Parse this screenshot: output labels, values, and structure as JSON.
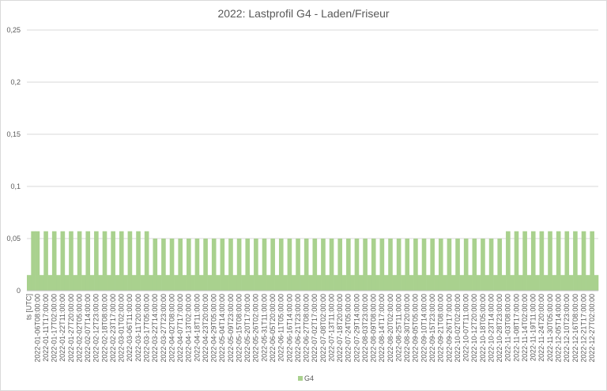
{
  "chart_data": {
    "type": "bar",
    "title": "2022: Lastprofil G4 - Laden/Friseur",
    "categories": [
      "ts [UTC]",
      null,
      "2022-01-06T08:00:00",
      null,
      "2022-01-11T17:00:00",
      null,
      "2022-01-17T02:00:00",
      null,
      "2022-01-22T11:00:00",
      null,
      "2022-01-27T20:00:00",
      null,
      "2022-02-02T05:00:00",
      null,
      "2022-02-07T14:00:00",
      null,
      "2022-02-12T23:00:00",
      null,
      "2022-02-18T08:00:00",
      null,
      "2022-02-23T17:00:00",
      null,
      "2022-03-01T02:00:00",
      null,
      "2022-03-06T11:00:00",
      null,
      "2022-03-11T20:00:00",
      null,
      "2022-03-17T05:00:00",
      null,
      "2022-03-22T14:00:00",
      null,
      "2022-03-27T23:00:00",
      null,
      "2022-04-02T08:00:00",
      null,
      "2022-04-07T17:00:00",
      null,
      "2022-04-13T02:00:00",
      null,
      "2022-04-18T11:00:00",
      null,
      "2022-04-23T20:00:00",
      null,
      "2022-04-29T05:00:00",
      null,
      "2022-05-04T14:00:00",
      null,
      "2022-05-09T23:00:00",
      null,
      "2022-05-15T08:00:00",
      null,
      "2022-05-20T17:00:00",
      null,
      "2022-05-26T02:00:00",
      null,
      "2022-05-31T11:00:00",
      null,
      "2022-06-05T20:00:00",
      null,
      "2022-06-11T05:00:00",
      null,
      "2022-06-16T14:00:00",
      null,
      "2022-06-21T23:00:00",
      null,
      "2022-06-27T08:00:00",
      null,
      "2022-07-02T17:00:00",
      null,
      "2022-07-08T02:00:00",
      null,
      "2022-07-13T11:00:00",
      null,
      "2022-07-18T20:00:00",
      null,
      "2022-07-24T05:00:00",
      null,
      "2022-07-29T14:00:00",
      null,
      "2022-08-03T23:00:00",
      null,
      "2022-08-09T08:00:00",
      null,
      "2022-08-14T17:00:00",
      null,
      "2022-08-20T02:00:00",
      null,
      "2022-08-25T11:00:00",
      null,
      "2022-08-30T20:00:00",
      null,
      "2022-09-05T05:00:00",
      null,
      "2022-09-10T14:00:00",
      null,
      "2022-09-15T23:00:00",
      null,
      "2022-09-21T08:00:00",
      null,
      "2022-09-26T17:00:00",
      null,
      "2022-10-02T02:00:00",
      null,
      "2022-10-07T11:00:00",
      null,
      "2022-10-12T20:00:00",
      null,
      "2022-10-18T05:00:00",
      null,
      "2022-10-23T14:00:00",
      null,
      "2022-10-28T23:00:00",
      null,
      "2022-11-03T08:00:00",
      null,
      "2022-11-08T17:00:00",
      null,
      "2022-11-14T02:00:00",
      null,
      "2022-11-19T11:00:00",
      null,
      "2022-11-24T20:00:00",
      null,
      "2022-11-30T05:00:00",
      null,
      "2022-12-05T14:00:00",
      null,
      "2022-12-10T23:00:00",
      null,
      "2022-12-16T08:00:00",
      null,
      "2022-12-21T17:00:00",
      null,
      "2022-12-27T02:00:00",
      null
    ],
    "series": [
      {
        "name": "G4",
        "color": "#a9d18e",
        "values": [
          0.015,
          0.057,
          0.057,
          0.015,
          0.057,
          0.015,
          0.057,
          0.015,
          0.057,
          0.015,
          0.057,
          0.015,
          0.057,
          0.015,
          0.057,
          0.015,
          0.057,
          0.015,
          0.057,
          0.015,
          0.057,
          0.015,
          0.057,
          0.015,
          0.057,
          0.015,
          0.057,
          0.015,
          0.057,
          0.015,
          0.05,
          0.015,
          0.05,
          0.015,
          0.05,
          0.015,
          0.05,
          0.015,
          0.05,
          0.015,
          0.05,
          0.015,
          0.05,
          0.015,
          0.05,
          0.015,
          0.05,
          0.015,
          0.05,
          0.015,
          0.05,
          0.015,
          0.05,
          0.015,
          0.05,
          0.015,
          0.05,
          0.015,
          0.05,
          0.015,
          0.05,
          0.015,
          0.05,
          0.015,
          0.05,
          0.015,
          0.05,
          0.015,
          0.05,
          0.015,
          0.05,
          0.015,
          0.05,
          0.015,
          0.05,
          0.015,
          0.05,
          0.015,
          0.05,
          0.015,
          0.05,
          0.015,
          0.05,
          0.015,
          0.05,
          0.015,
          0.05,
          0.015,
          0.05,
          0.015,
          0.05,
          0.015,
          0.05,
          0.015,
          0.05,
          0.015,
          0.05,
          0.015,
          0.05,
          0.015,
          0.05,
          0.015,
          0.05,
          0.015,
          0.05,
          0.015,
          0.05,
          0.015,
          0.05,
          0.015,
          0.05,
          0.015,
          0.05,
          0.015,
          0.057,
          0.015,
          0.057,
          0.015,
          0.057,
          0.015,
          0.057,
          0.015,
          0.057,
          0.015,
          0.057,
          0.015,
          0.057,
          0.015,
          0.057,
          0.015,
          0.057,
          0.015,
          0.057,
          0.015,
          0.057,
          0.015
        ]
      }
    ],
    "ylim": [
      0,
      0.25
    ],
    "yticks": [
      0,
      {
        "value": 0.05,
        "label": "0,05"
      },
      {
        "value": 0.1,
        "label": "0,1"
      },
      {
        "value": 0.15,
        "label": "0,15"
      },
      {
        "value": 0.2,
        "label": "0,2"
      },
      {
        "value": 0.25,
        "label": "0,25"
      }
    ],
    "grid": true,
    "legend": "bottom"
  }
}
